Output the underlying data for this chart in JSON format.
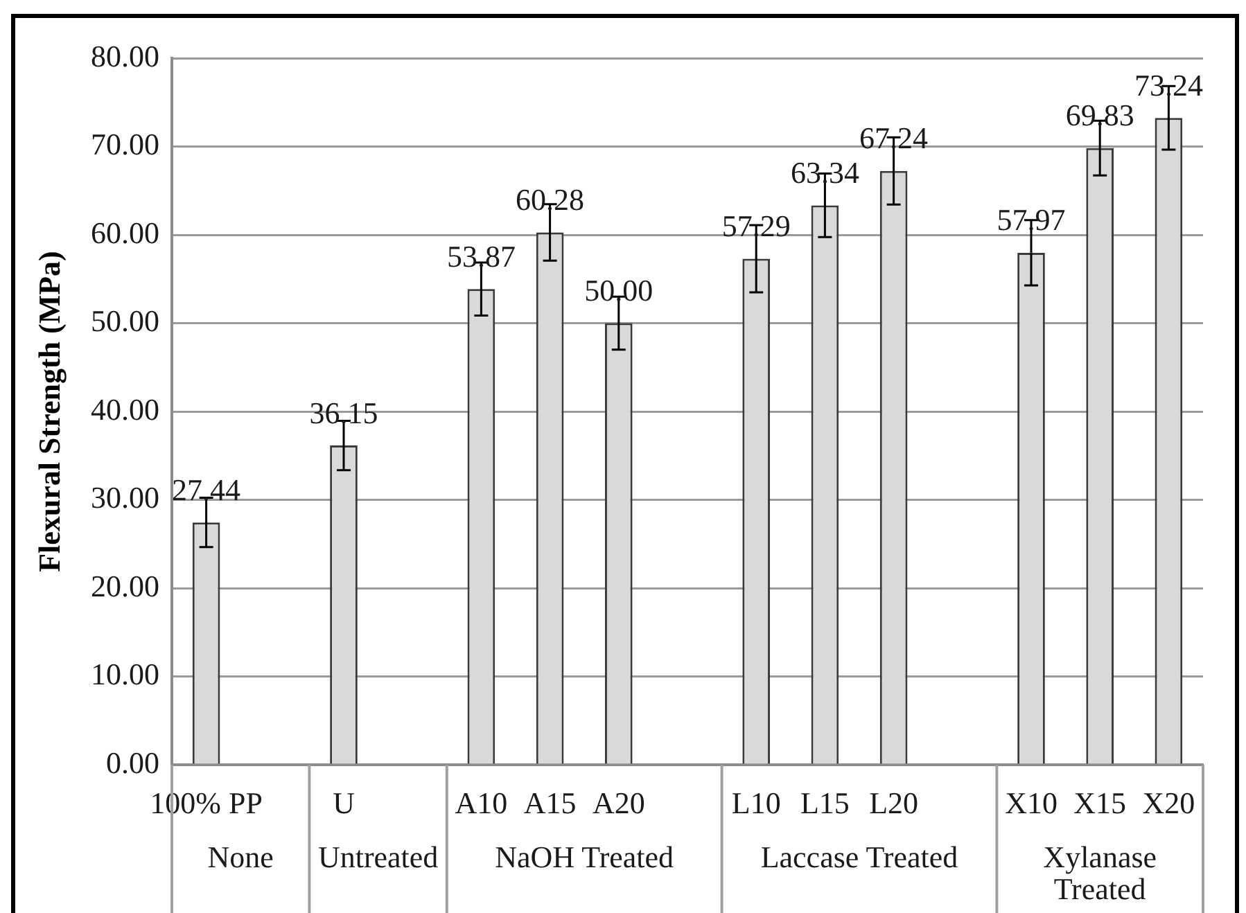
{
  "chart_data": {
    "type": "bar",
    "ylabel": "Flexural Strength (MPa)",
    "categories": [
      "100% PP",
      null,
      "U",
      null,
      "A10",
      "A15",
      "A20",
      null,
      "L10",
      "L15",
      "L20",
      null,
      "X10",
      "X15",
      "X20"
    ],
    "values": [
      27.44,
      null,
      36.15,
      null,
      53.87,
      60.28,
      50.0,
      null,
      57.29,
      63.34,
      67.24,
      null,
      57.97,
      69.83,
      73.24
    ],
    "errors": [
      2.8,
      null,
      2.8,
      null,
      3.0,
      3.2,
      3.0,
      null,
      3.8,
      3.6,
      3.8,
      null,
      3.7,
      3.1,
      3.6
    ],
    "value_labels": [
      "27.44",
      null,
      "36.15",
      null,
      "53.87",
      "60.28",
      "50.00",
      null,
      "57.29",
      "63.34",
      "67.24",
      null,
      "57.97",
      "69.83",
      "73.24"
    ],
    "color": "#d9d9d9",
    "ylim": [
      0,
      80
    ],
    "yticks": [
      {
        "value": 0,
        "label": "0.00"
      },
      {
        "value": 10,
        "label": "10.00"
      },
      {
        "value": 20,
        "label": "20.00"
      },
      {
        "value": 30,
        "label": "30.00"
      },
      {
        "value": 40,
        "label": "40.00"
      },
      {
        "value": 50,
        "label": "50.00"
      },
      {
        "value": 60,
        "label": "60.00"
      },
      {
        "value": 70,
        "label": "70.00"
      },
      {
        "value": 80,
        "label": "80.00"
      }
    ],
    "grid": "y",
    "annotations": [
      "None",
      "Untreated",
      "NaOH Treated",
      "Laccase Treated",
      "Xylanase Treated"
    ]
  }
}
